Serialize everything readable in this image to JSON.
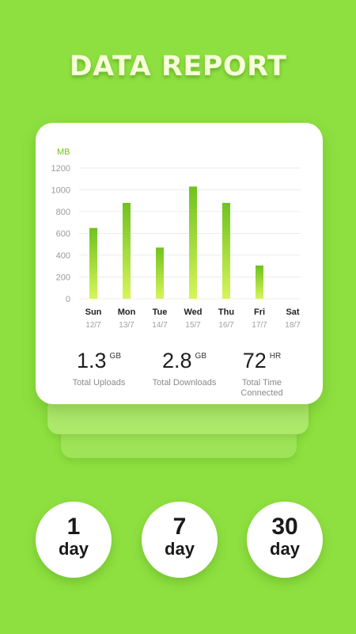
{
  "header": {
    "title": "DATA REPORT"
  },
  "chart_data": {
    "type": "bar",
    "ylabel": "MB",
    "ylim": [
      0,
      1200
    ],
    "yticks": [
      0,
      200,
      400,
      600,
      800,
      1000,
      1200
    ],
    "grid": true,
    "categories": [
      "Sun",
      "Mon",
      "Tue",
      "Wed",
      "Thu",
      "Fri",
      "Sat"
    ],
    "dates": [
      "12/7",
      "13/7",
      "14/7",
      "15/7",
      "16/7",
      "17/7",
      "18/7"
    ],
    "values": [
      650,
      880,
      470,
      1030,
      880,
      305,
      0
    ],
    "bar_color_top": "#6fc21f",
    "bar_color_bottom": "#d6f55a"
  },
  "stats": {
    "uploads": {
      "value": "1.3",
      "unit": "GB",
      "label": "Total Uploads"
    },
    "downloads": {
      "value": "2.8",
      "unit": "GB",
      "label": "Total Downloads"
    },
    "time": {
      "value": "72",
      "unit": "HR",
      "label": "Total Time Connected"
    }
  },
  "periods": [
    {
      "number": "1",
      "unit": "day"
    },
    {
      "number": "7",
      "unit": "day"
    },
    {
      "number": "30",
      "unit": "day"
    }
  ],
  "colors": {
    "background": "#8ee040",
    "accent": "#6fc21f",
    "card": "#ffffff"
  }
}
